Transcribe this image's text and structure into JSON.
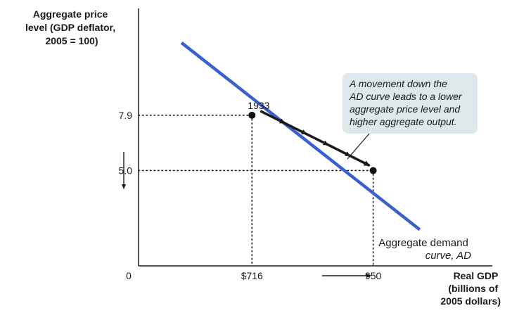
{
  "chart_data": {
    "type": "line",
    "ylabel_lines": [
      "Aggregate price",
      "level (GDP deflator,",
      "2005 = 100)"
    ],
    "xlabel_lines": [
      "Real GDP",
      "(billions of",
      "2005 dollars)"
    ],
    "origin_label": "0",
    "curve": {
      "name_lines": [
        "Aggregate demand",
        "curve, AD"
      ],
      "color": "#3a5fcf",
      "x": [
        580,
        1040
      ],
      "y": [
        11.7,
        1.9
      ]
    },
    "points": [
      {
        "x": 716,
        "y": 7.9,
        "label": "1933"
      },
      {
        "x": 950,
        "y": 5.0,
        "label": ""
      }
    ],
    "x_ticks": [
      {
        "value": 716,
        "label": "$716"
      },
      {
        "value": 950,
        "label": "950"
      }
    ],
    "y_ticks": [
      {
        "value": 7.9,
        "label": "7.9"
      },
      {
        "value": 5.0,
        "label": "5.0"
      }
    ],
    "xlim": [
      497,
      1180
    ],
    "ylim": [
      0,
      13.5
    ],
    "annotation": {
      "lines": [
        "A movement down the",
        "AD curve leads to a lower",
        "aggregate price level and",
        "higher aggregate output."
      ],
      "box_color": "#dde8ea"
    },
    "grid": false,
    "legend": "none"
  }
}
